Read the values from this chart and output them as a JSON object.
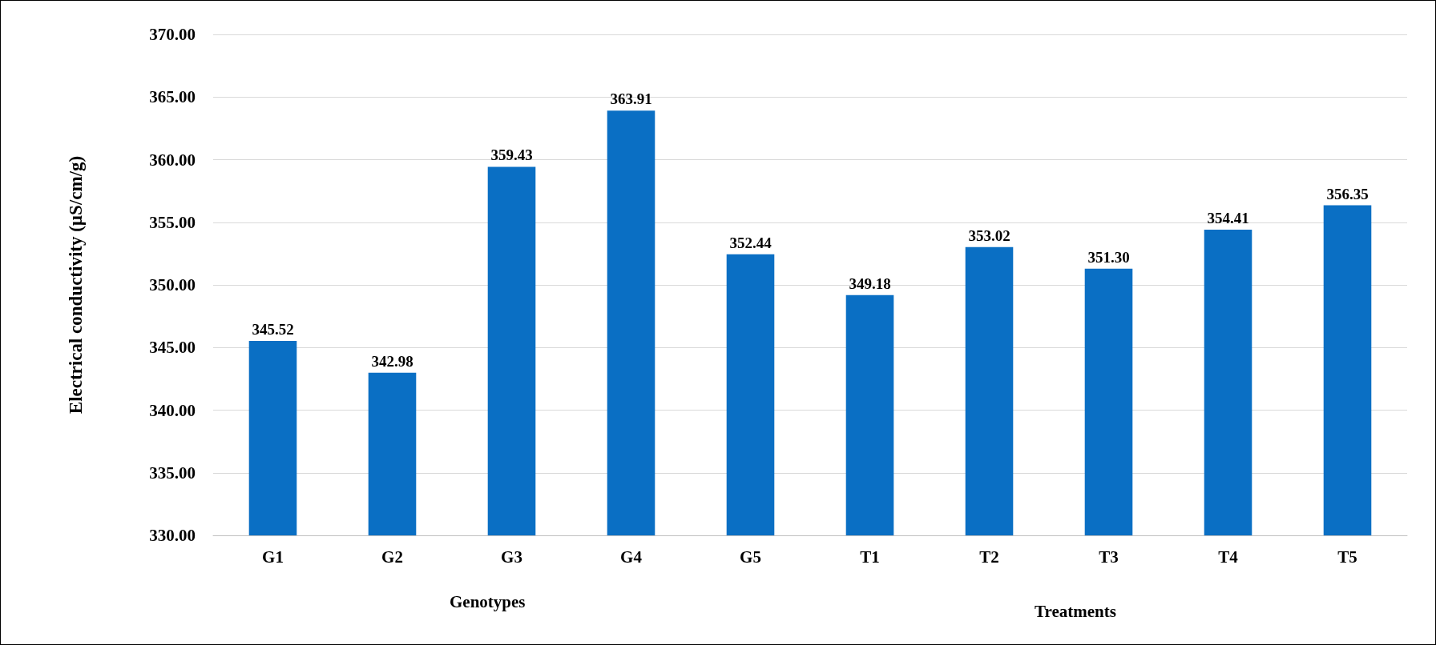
{
  "chart_data": {
    "type": "bar",
    "ylabel": "Electrical conductivity (µS/cm/g)",
    "categories": [
      "G1",
      "G2",
      "G3",
      "G4",
      "G5",
      "T1",
      "T2",
      "T3",
      "T4",
      "T5"
    ],
    "values": [
      345.52,
      342.98,
      359.43,
      363.91,
      352.44,
      349.18,
      353.02,
      351.3,
      354.41,
      356.35
    ],
    "value_labels": [
      "345.52",
      "342.98",
      "359.43",
      "363.91",
      "352.44",
      "349.18",
      "353.02",
      "351.30",
      "354.41",
      "356.35"
    ],
    "color": "#0a6fc4",
    "ylim": [
      330,
      370
    ],
    "yticks": [
      {
        "value": 330,
        "label": "330.00"
      },
      {
        "value": 335,
        "label": "335.00"
      },
      {
        "value": 340,
        "label": "340.00"
      },
      {
        "value": 345,
        "label": "345.00"
      },
      {
        "value": 350,
        "label": "350.00"
      },
      {
        "value": 355,
        "label": "355.00"
      },
      {
        "value": 360,
        "label": "360.00"
      },
      {
        "value": 365,
        "label": "365.00"
      },
      {
        "value": 370,
        "label": "370.00"
      }
    ],
    "grid": "y",
    "annotations": [
      "Genotypes",
      "Treatments"
    ]
  }
}
